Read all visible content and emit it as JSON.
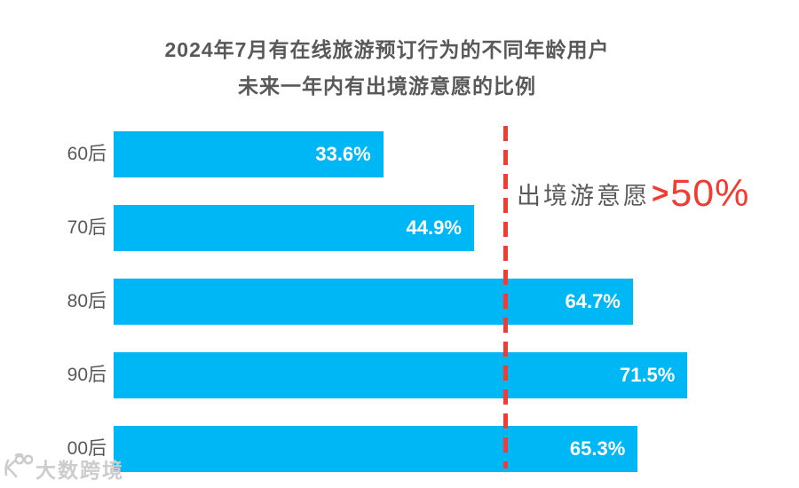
{
  "chart_data": {
    "type": "bar",
    "orientation": "horizontal",
    "title": "2024年7月有在线旅游预订行为的不同年龄用户 未来一年内有出境游意愿的比例",
    "title_line1": "2024年7月有在线旅游预订行为的不同年龄用户",
    "title_line2": "未来一年内有出境游意愿的比例",
    "categories": [
      "60后",
      "70后",
      "80后",
      "90后",
      "00后"
    ],
    "values": [
      33.6,
      44.9,
      64.7,
      71.5,
      65.3
    ],
    "value_labels": [
      "33.6%",
      "44.9%",
      "64.7%",
      "71.5%",
      "65.3%"
    ],
    "xlabel": "",
    "ylabel": "",
    "xlim": [
      0,
      85
    ],
    "grid": false,
    "legend": false,
    "bar_color": "#00b7f5",
    "value_label_color": "#ffffff",
    "category_label_color": "#595959",
    "title_color": "#595959",
    "threshold": {
      "value": 50,
      "line_color": "#f23b31",
      "line_style": "dashed",
      "annotation_gray": "出境游意愿",
      "annotation_gt": ">",
      "annotation_red": "50%"
    }
  },
  "watermark": {
    "logo_icon": "dashukuajing-logo-icon",
    "text": "大数跨境",
    "color": "#cccccc"
  }
}
